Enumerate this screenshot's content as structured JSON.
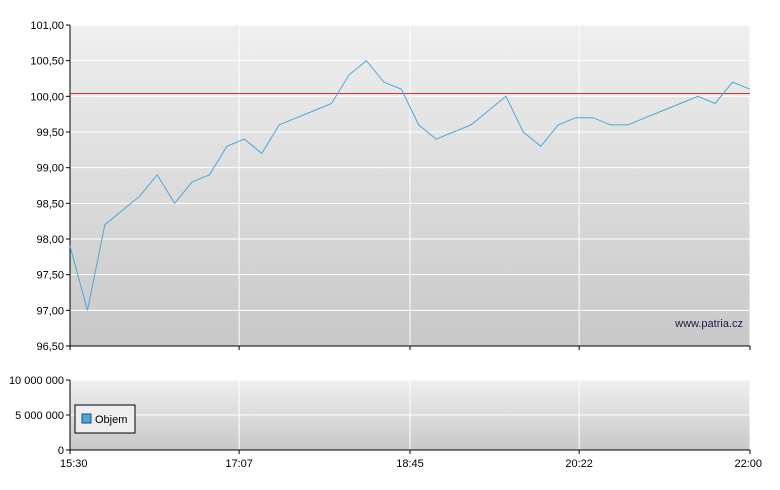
{
  "chart_data": [
    {
      "type": "line",
      "x_tick_labels": [
        "15:30",
        "17:07",
        "18:45",
        "20:22",
        "22:00"
      ],
      "y_tick_labels": [
        "96,50",
        "97,00",
        "97,50",
        "98,00",
        "98,50",
        "99,00",
        "99,50",
        "100,00",
        "100,50",
        "101,00"
      ],
      "ylim": [
        96.5,
        101.0
      ],
      "grid": true,
      "reference_line": 100.04,
      "watermark": "www.patria.cz",
      "colors": {
        "line": "#4da6d9",
        "reference": "#cc3333",
        "grid": "#ffffff"
      },
      "series": [
        {
          "x": [
            "15:30",
            "15:40",
            "15:50",
            "16:00",
            "16:10",
            "16:20",
            "16:30",
            "16:40",
            "16:50",
            "17:00",
            "17:10",
            "17:20",
            "17:30",
            "17:40",
            "17:50",
            "18:00",
            "18:10",
            "18:20",
            "18:30",
            "18:40",
            "18:50",
            "19:00",
            "19:10",
            "19:20",
            "19:30",
            "19:40",
            "19:50",
            "20:00",
            "20:10",
            "20:20",
            "20:30",
            "20:40",
            "20:50",
            "21:00",
            "21:10",
            "21:20",
            "21:30",
            "21:40",
            "21:50",
            "22:00"
          ],
          "y": [
            97.9,
            97.0,
            98.2,
            98.4,
            98.6,
            98.9,
            98.5,
            98.8,
            98.9,
            99.3,
            99.4,
            99.2,
            99.6,
            99.7,
            99.8,
            99.9,
            100.3,
            100.5,
            100.2,
            100.1,
            99.6,
            99.4,
            99.5,
            99.6,
            99.8,
            100.0,
            99.5,
            99.3,
            99.6,
            99.7,
            99.7,
            99.6,
            99.6,
            99.7,
            99.8,
            99.9,
            100.0,
            99.9,
            100.2,
            100.1
          ]
        }
      ]
    },
    {
      "type": "bar",
      "x_tick_labels": [
        "15:30",
        "17:07",
        "18:45",
        "20:22",
        "22:00"
      ],
      "y_tick_labels": [
        "0",
        "5 000 000",
        "10 000 000"
      ],
      "ylim": [
        0,
        10000000
      ],
      "grid": true,
      "legend": "bottom-left",
      "series": [
        {
          "name": "Objem",
          "values": []
        }
      ]
    }
  ]
}
